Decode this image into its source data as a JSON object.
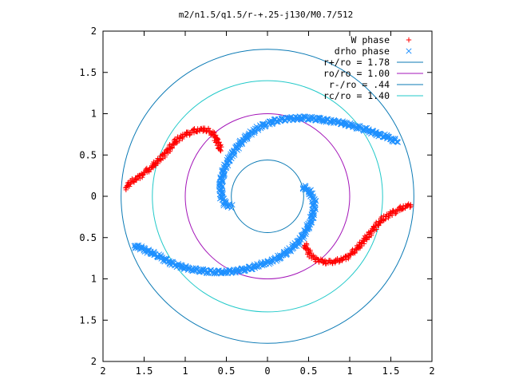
{
  "chart_data": {
    "type": "scatter",
    "title": "m2/n1.5/q1.5/r-+.25-j130/M0.7/512",
    "xlabel": "",
    "ylabel": "",
    "xlim": [
      -2,
      2
    ],
    "ylim": [
      -2,
      2
    ],
    "x_ticks": [
      -2,
      -1.5,
      -1,
      -0.5,
      0,
      0.5,
      1,
      1.5,
      2
    ],
    "x_tick_labels": [
      "2",
      "1.5",
      "1",
      "0.5",
      "0",
      "0.5",
      "1",
      "1.5",
      "2"
    ],
    "y_ticks": [
      2,
      1.5,
      1,
      0.5,
      0,
      -0.5,
      -1,
      -1.5,
      -2
    ],
    "y_tick_labels": [
      "2",
      "1.5",
      "1",
      "0.5",
      "0",
      "0.5",
      "1",
      "1.5",
      "2"
    ],
    "grid": false,
    "legend_position": "top-right",
    "circles": [
      {
        "name": "r+/ro = 1.78",
        "radius": 1.78,
        "color": "#0b7ab5"
      },
      {
        "name": "ro/ro = 1.00",
        "radius": 1.0,
        "color": "#a314b8"
      },
      {
        "name": "r-/ro = .44",
        "radius": 0.44,
        "color": "#0b7ab5"
      },
      {
        "name": "rc/ro = 1.40",
        "radius": 1.4,
        "color": "#21c9c9"
      }
    ],
    "series": [
      {
        "name": "W phase",
        "marker": "plus",
        "color": "#ff0000",
        "segments": [
          [
            [
              -1.72,
              0.1
            ],
            [
              -1.68,
              0.15
            ],
            [
              -1.6,
              0.21
            ],
            [
              -1.5,
              0.28
            ],
            [
              -1.4,
              0.36
            ],
            [
              -1.3,
              0.46
            ],
            [
              -1.2,
              0.57
            ],
            [
              -1.1,
              0.68
            ],
            [
              -1.0,
              0.75
            ],
            [
              -0.9,
              0.79
            ],
            [
              -0.8,
              0.81
            ],
            [
              -0.72,
              0.8
            ],
            [
              -0.65,
              0.74
            ],
            [
              -0.6,
              0.65
            ],
            [
              -0.57,
              0.55
            ]
          ],
          [
            [
              0.45,
              -0.58
            ],
            [
              0.52,
              -0.71
            ],
            [
              0.62,
              -0.78
            ],
            [
              0.72,
              -0.8
            ],
            [
              0.82,
              -0.79
            ],
            [
              0.92,
              -0.76
            ],
            [
              1.02,
              -0.7
            ],
            [
              1.12,
              -0.6
            ],
            [
              1.22,
              -0.48
            ],
            [
              1.32,
              -0.36
            ],
            [
              1.42,
              -0.26
            ],
            [
              1.52,
              -0.2
            ],
            [
              1.62,
              -0.15
            ],
            [
              1.7,
              -0.12
            ],
            [
              1.74,
              -0.1
            ]
          ]
        ]
      },
      {
        "name": "drho phase",
        "marker": "x",
        "color": "#1e90ff",
        "segments": [
          [
            [
              -0.44,
              -0.12
            ],
            [
              -0.51,
              -0.1
            ],
            [
              -0.56,
              0.0
            ],
            [
              -0.57,
              0.15
            ],
            [
              -0.53,
              0.32
            ],
            [
              -0.45,
              0.48
            ],
            [
              -0.35,
              0.62
            ],
            [
              -0.22,
              0.75
            ],
            [
              -0.08,
              0.85
            ],
            [
              0.08,
              0.91
            ],
            [
              0.25,
              0.94
            ],
            [
              0.45,
              0.95
            ],
            [
              0.65,
              0.93
            ],
            [
              0.85,
              0.9
            ],
            [
              1.05,
              0.85
            ],
            [
              1.22,
              0.8
            ],
            [
              1.38,
              0.74
            ],
            [
              1.5,
              0.7
            ],
            [
              1.58,
              0.66
            ]
          ],
          [
            [
              0.43,
              0.12
            ],
            [
              0.52,
              0.05
            ],
            [
              0.57,
              -0.07
            ],
            [
              0.56,
              -0.2
            ],
            [
              0.52,
              -0.32
            ],
            [
              0.45,
              -0.45
            ],
            [
              0.36,
              -0.57
            ],
            [
              0.25,
              -0.67
            ],
            [
              0.12,
              -0.75
            ],
            [
              -0.02,
              -0.81
            ],
            [
              -0.18,
              -0.86
            ],
            [
              -0.35,
              -0.9
            ],
            [
              -0.55,
              -0.92
            ],
            [
              -0.75,
              -0.91
            ],
            [
              -0.95,
              -0.88
            ],
            [
              -1.12,
              -0.83
            ],
            [
              -1.28,
              -0.75
            ],
            [
              -1.42,
              -0.68
            ],
            [
              -1.55,
              -0.62
            ],
            [
              -1.62,
              -0.6
            ]
          ]
        ]
      }
    ]
  }
}
